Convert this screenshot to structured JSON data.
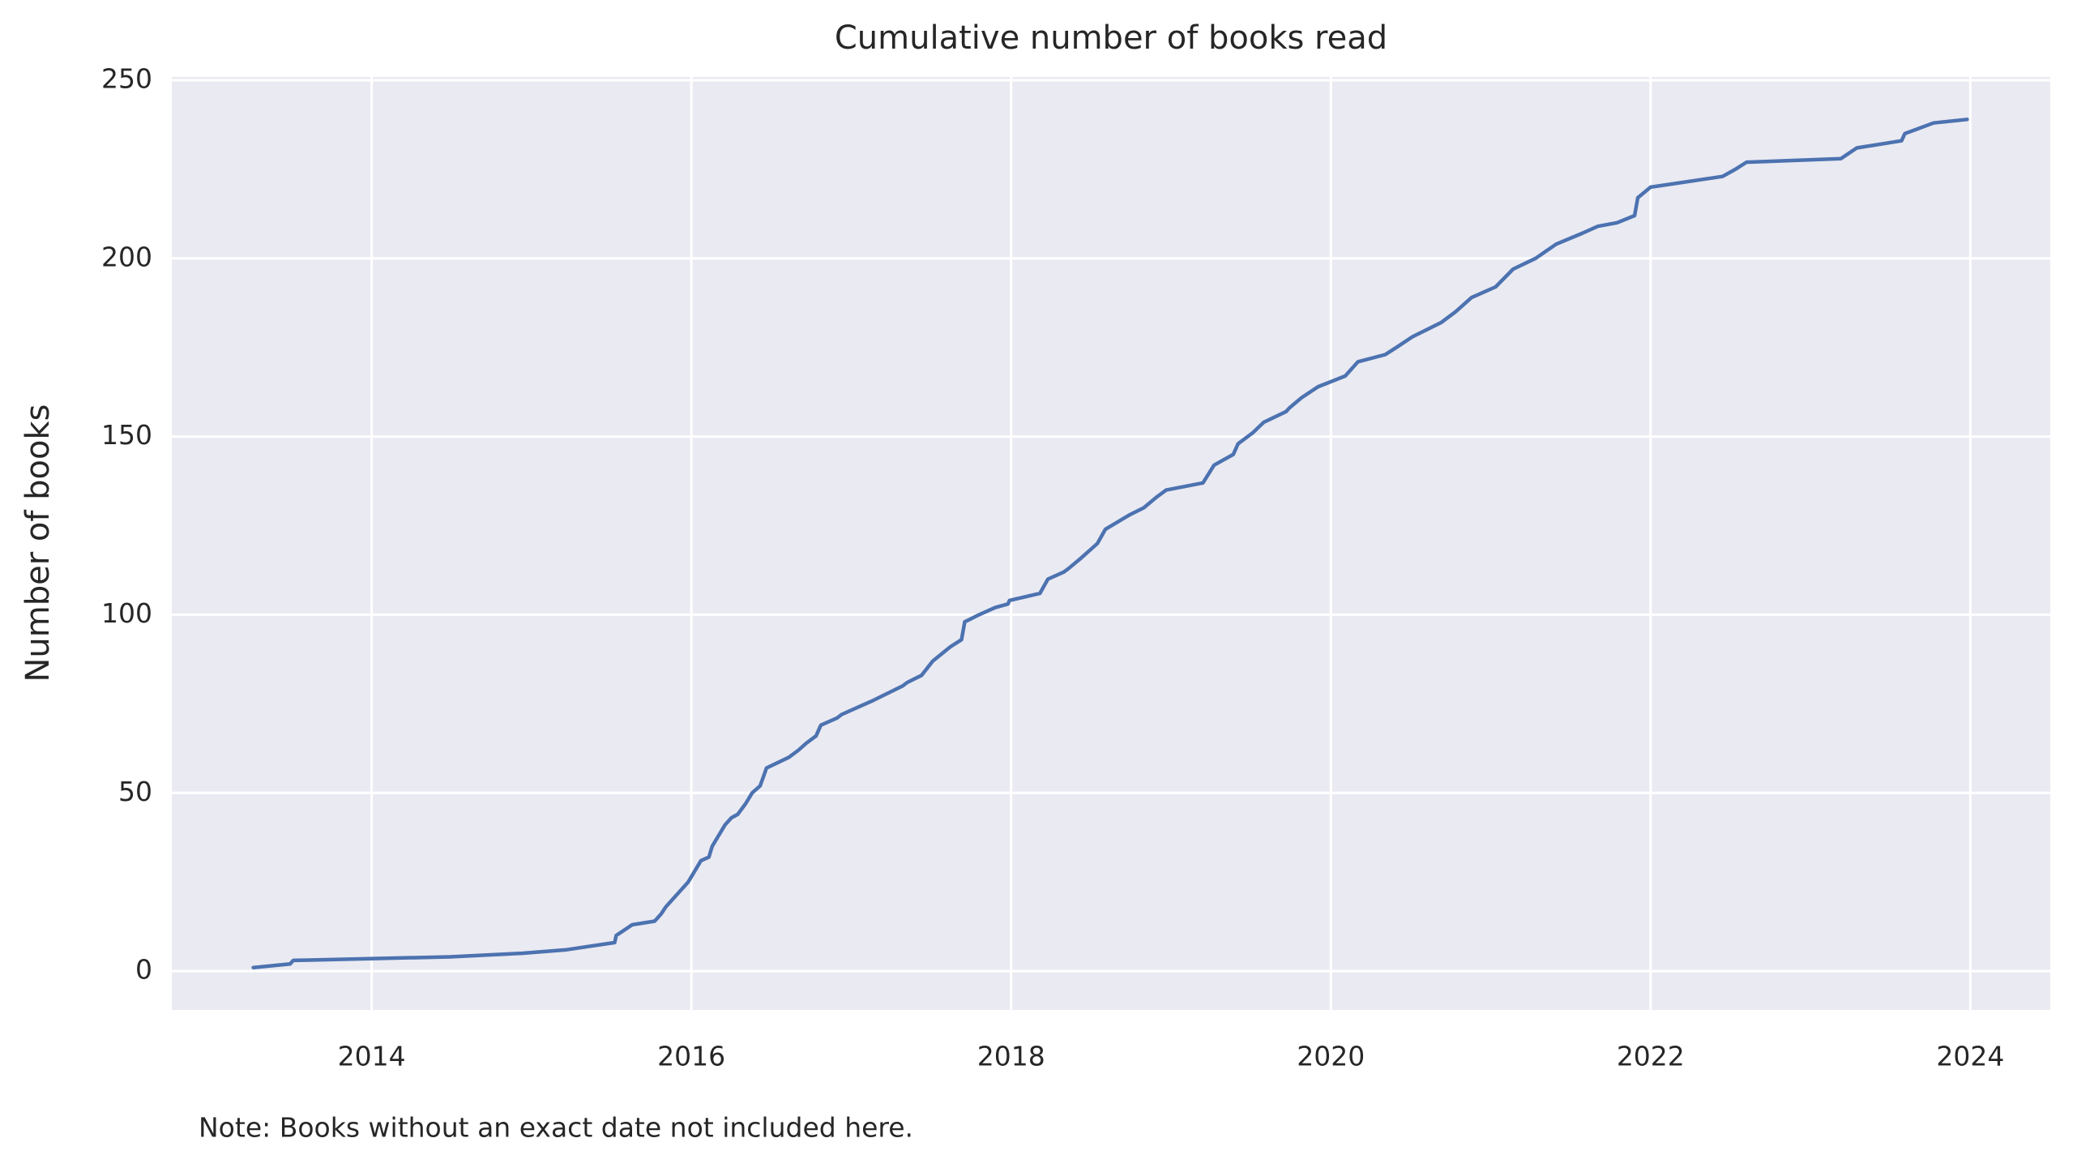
{
  "chart_data": {
    "type": "line",
    "title": "Cumulative number of books read",
    "ylabel": "Number of books",
    "note": "Note: Books without an exact date not included here.",
    "color": "#4c72b0",
    "grid": true,
    "x": [
      2013.26,
      2013.49,
      2013.51,
      2014.49,
      2014.94,
      2015.22,
      2015.52,
      2015.53,
      2015.63,
      2015.77,
      2015.81,
      2015.84,
      2015.9,
      2015.98,
      2016.06,
      2016.11,
      2016.13,
      2016.17,
      2016.21,
      2016.25,
      2016.29,
      2016.34,
      2016.38,
      2016.43,
      2016.47,
      2016.61,
      2016.67,
      2016.72,
      2016.78,
      2016.81,
      2016.91,
      2016.94,
      2017.04,
      2017.14,
      2017.32,
      2017.35,
      2017.44,
      2017.51,
      2017.62,
      2017.69,
      2017.71,
      2017.8,
      2017.9,
      2017.98,
      2017.99,
      2018.18,
      2018.23,
      2018.33,
      2018.36,
      2018.44,
      2018.54,
      2018.59,
      2018.74,
      2018.83,
      2018.91,
      2018.97,
      2019.2,
      2019.27,
      2019.39,
      2019.42,
      2019.51,
      2019.58,
      2019.72,
      2019.74,
      2019.82,
      2019.92,
      2020.09,
      2020.17,
      2020.34,
      2020.41,
      2020.51,
      2020.69,
      2020.78,
      2020.88,
      2021.03,
      2021.14,
      2021.28,
      2021.41,
      2021.57,
      2021.67,
      2021.79,
      2021.9,
      2021.92,
      2022.0,
      2022.45,
      2022.53,
      2022.6,
      2023.19,
      2023.29,
      2023.57,
      2023.59,
      2023.77,
      2023.98
    ],
    "values": [
      1,
      2,
      3,
      4,
      5,
      6,
      8,
      10,
      13,
      14,
      16,
      18,
      21,
      25,
      31,
      32,
      35,
      38,
      41,
      43,
      44,
      47,
      50,
      52,
      57,
      60,
      62,
      64,
      66,
      69,
      71,
      72,
      74,
      76,
      80,
      81,
      83,
      87,
      91,
      93,
      98,
      100,
      102,
      103,
      104,
      106,
      110,
      112,
      113,
      116,
      120,
      124,
      128,
      130,
      133,
      135,
      137,
      142,
      145,
      148,
      151,
      154,
      157,
      158,
      161,
      164,
      167,
      171,
      173,
      175,
      178,
      182,
      185,
      189,
      192,
      197,
      200,
      204,
      207,
      209,
      210,
      212,
      217,
      220,
      223,
      225,
      227,
      228,
      231,
      233,
      235,
      238,
      239
    ],
    "xlim": [
      2012.75,
      2024.5
    ],
    "xticks": [
      2014,
      2016,
      2018,
      2020,
      2022,
      2024
    ],
    "ylim": [
      -10.9,
      250.9
    ],
    "yticks": [
      0,
      50,
      100,
      150,
      200,
      250
    ]
  }
}
